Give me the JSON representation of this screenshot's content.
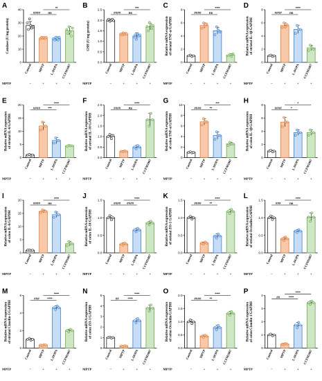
{
  "figure": {
    "categories": [
      "Control",
      "MPTP",
      "L-DOPA",
      "CCFM1067"
    ],
    "mptp_label": "MPTP",
    "mptp_signs": [
      "−",
      "+",
      "+",
      "+"
    ],
    "colors": [
      "#222222",
      "#e07b39",
      "#3a7fd5",
      "#6aa84f"
    ],
    "fill_colors": [
      "#ffffff",
      "#f9c8a8",
      "#c7dcf5",
      "#cfe6c4"
    ]
  },
  "chart_data": [
    {
      "type": "bar",
      "panel": "A",
      "ylabel": "Catalase (U/mg protein)",
      "ylim": [
        0,
        40
      ],
      "ticks": [
        0,
        10,
        20,
        30,
        40
      ],
      "values": [
        28,
        18.5,
        18,
        24
      ],
      "errors": [
        3,
        1,
        1.5,
        3
      ],
      "points": [
        [
          30,
          25,
          33,
          28,
          26,
          27
        ],
        [
          18,
          19,
          18.5,
          19,
          18,
          19
        ],
        [
          18,
          17,
          19,
          18,
          17,
          19
        ],
        [
          25,
          22,
          27,
          23,
          20,
          26
        ]
      ],
      "sig": [
        {
          "from": 0,
          "to": 1,
          "label": "####",
          "level": 0
        },
        {
          "from": 1,
          "to": 2,
          "label": "ns",
          "level": 0
        },
        {
          "from": 1,
          "to": 3,
          "label": "**",
          "level": 1
        }
      ]
    },
    {
      "type": "bar",
      "panel": "B",
      "ylabel": "GSH (U/mg protein)",
      "ylim": [
        0,
        2.5
      ],
      "ticks": [
        0.0,
        0.5,
        1.0,
        1.5,
        2.0,
        2.5
      ],
      "values": [
        2.0,
        1.35,
        1.25,
        1.7
      ],
      "errors": [
        0.05,
        0.05,
        0.15,
        0.15
      ],
      "points": [
        [
          2.0,
          2.05,
          1.95,
          2.0,
          2.05,
          1.98
        ],
        [
          1.35,
          1.3,
          1.4,
          1.32,
          1.38,
          1.35
        ],
        [
          1.2,
          1.3,
          1.1,
          1.35,
          1.25,
          1.3
        ],
        [
          1.7,
          1.5,
          1.9,
          1.8,
          1.6,
          1.75
        ]
      ],
      "sig": [
        {
          "from": 0,
          "to": 1,
          "label": "####",
          "level": 0
        },
        {
          "from": 1,
          "to": 2,
          "label": "ns",
          "level": 0
        },
        {
          "from": 1,
          "to": 3,
          "label": "***",
          "level": 1
        }
      ]
    },
    {
      "type": "bar",
      "panel": "C",
      "ylabel": "Relative mRNA expression of striatal TNF-α/GAPDH",
      "ylim": [
        0,
        8
      ],
      "ticks": [
        0,
        2,
        4,
        6,
        8
      ],
      "values": [
        1,
        5.6,
        4.8,
        1.1
      ],
      "errors": [
        0.1,
        0.4,
        0.5,
        0.2
      ],
      "points": [
        [
          1,
          1.1,
          0.9,
          1
        ],
        [
          5.2,
          6,
          5.5,
          5.8
        ],
        [
          4.2,
          5.4,
          4.9,
          4.6
        ],
        [
          1,
          1.2,
          0.9,
          1.3
        ]
      ],
      "sig": [
        {
          "from": 0,
          "to": 1,
          "label": "####",
          "level": 0
        },
        {
          "from": 1,
          "to": 2,
          "label": "ns",
          "level": 0
        },
        {
          "from": 1,
          "to": 3,
          "label": "****",
          "level": 1
        }
      ]
    },
    {
      "type": "bar",
      "panel": "D",
      "ylabel": "Relative mRNA expression of striatal IL-1β/GAPDH",
      "ylim": [
        0,
        8
      ],
      "ticks": [
        0,
        2,
        4,
        6,
        8
      ],
      "values": [
        1,
        5.6,
        5,
        2.2
      ],
      "errors": [
        0.1,
        0.4,
        0.6,
        0.4
      ],
      "points": [
        [
          1,
          1.1,
          0.9,
          1
        ],
        [
          5.3,
          6,
          5.4,
          5.7
        ],
        [
          4.4,
          5.6,
          5,
          5
        ],
        [
          1.8,
          2.6,
          2.2,
          2.0
        ]
      ],
      "sig": [
        {
          "from": 0,
          "to": 1,
          "label": "####",
          "level": 0
        },
        {
          "from": 1,
          "to": 2,
          "label": "ns",
          "level": 0
        },
        {
          "from": 1,
          "to": 3,
          "label": "****",
          "level": 1
        }
      ]
    },
    {
      "type": "bar",
      "panel": "E",
      "ylabel": "Relative mRNA expression of striatal IL-6/GAPDH",
      "ylim": [
        0,
        20
      ],
      "ticks": [
        0,
        5,
        10,
        15,
        20
      ],
      "values": [
        1,
        12,
        6.5,
        4.5
      ],
      "errors": [
        0.3,
        1.5,
        1.2,
        0.3
      ],
      "points": [
        [
          1,
          1.2,
          0.8,
          1
        ],
        [
          10.5,
          13.5,
          12,
          12
        ],
        [
          5.5,
          7.5,
          6.5,
          6.5
        ],
        [
          4.3,
          4.7,
          4.5,
          4.5
        ]
      ],
      "sig": [
        {
          "from": 0,
          "to": 1,
          "label": "####",
          "level": 0
        },
        {
          "from": 1,
          "to": 2,
          "label": "***",
          "level": 0
        },
        {
          "from": 1,
          "to": 3,
          "label": "****",
          "level": 1
        }
      ]
    },
    {
      "type": "bar",
      "panel": "F",
      "ylabel": "Relative mRNA expression of striatal IL-10/GAPDH",
      "ylim": [
        0,
        2.5
      ],
      "ticks": [
        0.0,
        0.5,
        1.0,
        1.5,
        2.0,
        2.5
      ],
      "values": [
        1,
        0.3,
        0.5,
        1.8
      ],
      "errors": [
        0.1,
        0.03,
        0.08,
        0.3
      ],
      "points": [
        [
          1,
          1.1,
          0.9,
          1.05
        ],
        [
          0.3,
          0.28,
          0.32,
          0.3
        ],
        [
          0.5,
          0.42,
          0.58,
          0.5
        ],
        [
          1.8,
          1.5,
          2.1,
          1.8
        ]
      ],
      "sig": [
        {
          "from": 0,
          "to": 1,
          "label": "####",
          "level": 0
        },
        {
          "from": 1,
          "to": 2,
          "label": "ns",
          "level": 0
        },
        {
          "from": 1,
          "to": 3,
          "label": "****",
          "level": 1
        }
      ]
    },
    {
      "type": "bar",
      "panel": "G",
      "ylabel": "Relative mRNA expression of colon TNF-α/GAPDH",
      "ylim": [
        0,
        10
      ],
      "ticks": [
        0,
        2,
        4,
        6,
        8,
        10
      ],
      "values": [
        1,
        6.8,
        4.2,
        2.6
      ],
      "errors": [
        0.1,
        0.6,
        0.7,
        0.3
      ],
      "points": [
        [
          1,
          1.1,
          0.9,
          1
        ],
        [
          6.2,
          7.4,
          6.8,
          6.8
        ],
        [
          3.5,
          4.9,
          4.2,
          4.2
        ],
        [
          2.3,
          2.9,
          2.6,
          2.6
        ]
      ],
      "sig": [
        {
          "from": 0,
          "to": 1,
          "label": "####",
          "level": 0
        },
        {
          "from": 1,
          "to": 2,
          "label": "**",
          "level": 0
        },
        {
          "from": 1,
          "to": 3,
          "label": "***",
          "level": 1
        }
      ]
    },
    {
      "type": "bar",
      "panel": "H",
      "ylabel": "Relative mRNA expression of colon IL-1β/GAPDH",
      "ylim": [
        0,
        8
      ],
      "ticks": [
        0,
        2,
        4,
        6,
        8
      ],
      "values": [
        1,
        5.4,
        3.8,
        3.8
      ],
      "errors": [
        0.1,
        0.7,
        0.4,
        0.4
      ],
      "points": [
        [
          1,
          1.1,
          0.9,
          1
        ],
        [
          4.7,
          6.1,
          5.4,
          5.4
        ],
        [
          3.4,
          4.2,
          3.8,
          3.8
        ],
        [
          3.4,
          4.2,
          3.8,
          3.8
        ]
      ],
      "sig": [
        {
          "from": 0,
          "to": 1,
          "label": "####",
          "level": 0
        },
        {
          "from": 1,
          "to": 2,
          "label": "*",
          "level": 0
        },
        {
          "from": 1,
          "to": 3,
          "label": "*",
          "level": 1
        }
      ]
    },
    {
      "type": "bar",
      "panel": "I",
      "ylabel": "Relative mRNA expression of colon IL-6/GAPDH",
      "ylim": [
        0,
        20
      ],
      "ticks": [
        0,
        5,
        10,
        15,
        20
      ],
      "values": [
        1,
        15.8,
        14.5,
        3.5
      ],
      "errors": [
        0.1,
        0.5,
        1,
        0.8
      ],
      "points": [
        [
          1,
          1.1,
          0.9,
          1
        ],
        [
          15.3,
          16.3,
          15.8,
          15.8
        ],
        [
          13.5,
          15.5,
          14.5,
          14.5
        ],
        [
          2.7,
          4.3,
          3.5,
          3.5
        ]
      ],
      "sig": [
        {
          "from": 0,
          "to": 1,
          "label": "####",
          "level": 0
        },
        {
          "from": 1,
          "to": 2,
          "label": "ns",
          "level": 0
        },
        {
          "from": 1,
          "to": 3,
          "label": "****",
          "level": 1
        }
      ]
    },
    {
      "type": "bar",
      "panel": "J",
      "ylabel": "Relative mRNA expression of colon IL-10/GAPDH",
      "ylim": [
        0,
        1.5
      ],
      "ticks": [
        0.0,
        0.5,
        1.0,
        1.5
      ],
      "values": [
        1,
        0.25,
        0.65,
        0.85
      ],
      "errors": [
        0.06,
        0.03,
        0.05,
        0.05
      ],
      "points": [
        [
          1,
          1.06,
          0.94,
          1
        ],
        [
          0.25,
          0.22,
          0.28,
          0.25
        ],
        [
          0.65,
          0.6,
          0.7,
          0.65
        ],
        [
          0.85,
          0.8,
          0.9,
          0.85
        ]
      ],
      "sig": [
        {
          "from": 0,
          "to": 1,
          "label": "####",
          "level": 0
        },
        {
          "from": 1,
          "to": 2,
          "label": "####",
          "level": 0
        },
        {
          "from": 1,
          "to": 3,
          "label": "****",
          "level": 1
        }
      ]
    },
    {
      "type": "bar",
      "panel": "K",
      "ylabel": "Relative mRNA expression of striatal ZO-1/GAPDH",
      "ylim": [
        0,
        1.5
      ],
      "ticks": [
        0.0,
        0.5,
        1.0,
        1.5
      ],
      "values": [
        1,
        0.28,
        0.48,
        1.18
      ],
      "errors": [
        0.04,
        0.03,
        0.06,
        0.06
      ],
      "points": [
        [
          1,
          1.04,
          0.96,
          1
        ],
        [
          0.28,
          0.25,
          0.31,
          0.28
        ],
        [
          0.48,
          0.42,
          0.54,
          0.48
        ],
        [
          1.18,
          1.12,
          1.24,
          1.18
        ]
      ],
      "sig": [
        {
          "from": 0,
          "to": 1,
          "label": "####",
          "level": 0
        },
        {
          "from": 1,
          "to": 2,
          "label": "**",
          "level": 0
        },
        {
          "from": 1,
          "to": 3,
          "label": "****",
          "level": 1
        }
      ]
    },
    {
      "type": "bar",
      "panel": "L",
      "ylabel": "Relative mRNA expression of striatal Occludin/GAPDH",
      "ylim": [
        0,
        1.5
      ],
      "ticks": [
        0.0,
        0.5,
        1.0,
        1.5
      ],
      "values": [
        1,
        0.4,
        0.62,
        1.02
      ],
      "errors": [
        0.05,
        0.05,
        0.04,
        0.12
      ],
      "points": [
        [
          1,
          1.05,
          0.95,
          1
        ],
        [
          0.4,
          0.35,
          0.45,
          0.4
        ],
        [
          0.62,
          0.58,
          0.66,
          0.62
        ],
        [
          1.02,
          0.9,
          1.14,
          1.02
        ]
      ],
      "sig": [
        {
          "from": 0,
          "to": 1,
          "label": "###",
          "level": 0
        },
        {
          "from": 1,
          "to": 2,
          "label": "ns",
          "level": 0
        },
        {
          "from": 1,
          "to": 3,
          "label": "****",
          "level": 1
        }
      ]
    },
    {
      "type": "bar",
      "panel": "M",
      "ylabel": "Relative mRNA expression of striatal Claudin-1/GAPDH",
      "ylim": [
        0,
        6
      ],
      "ticks": [
        0,
        2,
        4,
        6
      ],
      "values": [
        1,
        0.35,
        4.6,
        2
      ],
      "errors": [
        0.1,
        0.05,
        0.2,
        0.15
      ],
      "points": [
        [
          1,
          1.1,
          0.9,
          1
        ],
        [
          0.35,
          0.3,
          0.4,
          0.35
        ],
        [
          4.6,
          4.4,
          4.8,
          4.6
        ],
        [
          2,
          1.85,
          2.15,
          2
        ]
      ],
      "sig": [
        {
          "from": 0,
          "to": 1,
          "label": "###",
          "level": 0
        },
        {
          "from": 1,
          "to": 2,
          "label": "****",
          "level": 0
        },
        {
          "from": 1,
          "to": 3,
          "label": "****",
          "level": 1
        }
      ]
    },
    {
      "type": "bar",
      "panel": "N",
      "ylabel": "Relative mRNA expression of colon ZO-1/GAPDH",
      "ylim": [
        0,
        5
      ],
      "ticks": [
        0,
        1,
        2,
        3,
        4,
        5
      ],
      "values": [
        1,
        0.2,
        2.6,
        3.8
      ],
      "errors": [
        0.05,
        0.03,
        0.2,
        0.3
      ],
      "points": [
        [
          1,
          1.05,
          0.95,
          1
        ],
        [
          0.2,
          0.17,
          0.23,
          0.2
        ],
        [
          2.6,
          2.4,
          2.8,
          2.6
        ],
        [
          3.8,
          3.5,
          4.1,
          3.8
        ]
      ],
      "sig": [
        {
          "from": 0,
          "to": 1,
          "label": "##",
          "level": 0
        },
        {
          "from": 1,
          "to": 2,
          "label": "****",
          "level": 0
        },
        {
          "from": 1,
          "to": 3,
          "label": "****",
          "level": 1
        }
      ]
    },
    {
      "type": "bar",
      "panel": "O",
      "ylabel": "Relative mRNA expression of colon Occludin/GAPDH",
      "ylim": [
        0,
        2.0
      ],
      "ticks": [
        0.0,
        0.5,
        1.0,
        1.5,
        2.0
      ],
      "values": [
        1,
        0.45,
        0.78,
        1.32
      ],
      "errors": [
        0.07,
        0.04,
        0.08,
        0.07
      ],
      "points": [
        [
          1,
          1.07,
          0.93,
          1
        ],
        [
          0.45,
          0.41,
          0.49,
          0.45
        ],
        [
          0.78,
          0.7,
          0.86,
          0.78
        ],
        [
          1.32,
          1.25,
          1.39,
          1.32
        ]
      ],
      "sig": [
        {
          "from": 0,
          "to": 1,
          "label": "####",
          "level": 0
        },
        {
          "from": 1,
          "to": 2,
          "label": "**",
          "level": 0
        },
        {
          "from": 1,
          "to": 3,
          "label": "****",
          "level": 1
        }
      ]
    },
    {
      "type": "bar",
      "panel": "P",
      "ylabel": "Relative mRNA expression of colon Claudin-1/GAPDH",
      "ylim": [
        0,
        4
      ],
      "ticks": [
        0,
        1,
        2,
        3,
        4
      ],
      "values": [
        1,
        0.3,
        1.75,
        3.45
      ],
      "errors": [
        0.06,
        0.05,
        0.2,
        0.12
      ],
      "points": [
        [
          1,
          1.06,
          0.94,
          1
        ],
        [
          0.3,
          0.25,
          0.35,
          0.3
        ],
        [
          1.75,
          1.55,
          1.95,
          1.75
        ],
        [
          3.45,
          3.33,
          3.57,
          3.45
        ]
      ],
      "sig": [
        {
          "from": 0,
          "to": 1,
          "label": "##",
          "level": 0
        },
        {
          "from": 1,
          "to": 2,
          "label": "****",
          "level": 0
        },
        {
          "from": 1,
          "to": 3,
          "label": "****",
          "level": 1
        }
      ]
    }
  ]
}
